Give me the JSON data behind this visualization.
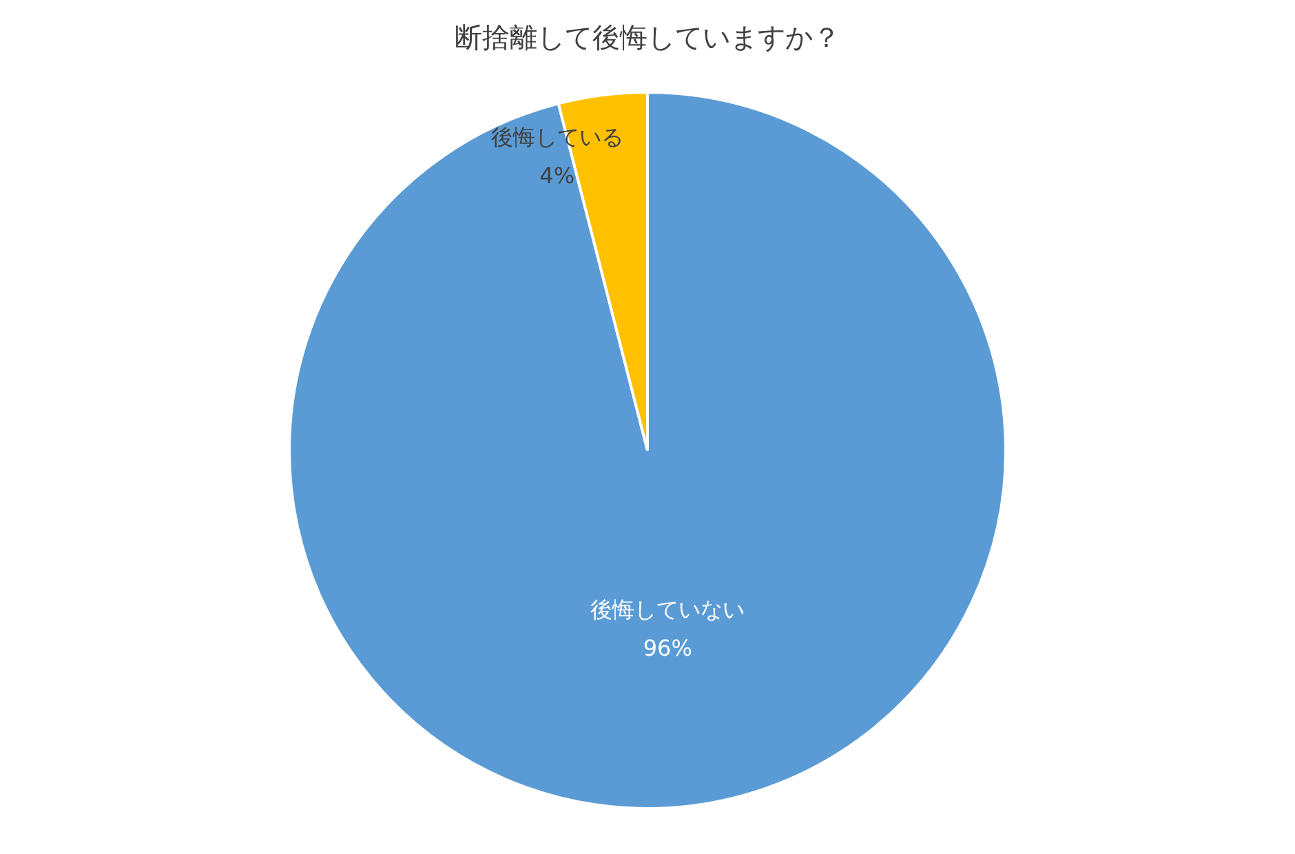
{
  "chart_data": {
    "type": "pie",
    "title": "断捨離して後悔していますか？",
    "categories": [
      "後悔していない",
      "後悔している"
    ],
    "values": [
      96,
      4
    ],
    "value_labels": [
      "96%",
      "4%"
    ],
    "colors": [
      "#5b9bd5",
      "#ffc000"
    ],
    "legend": false
  }
}
